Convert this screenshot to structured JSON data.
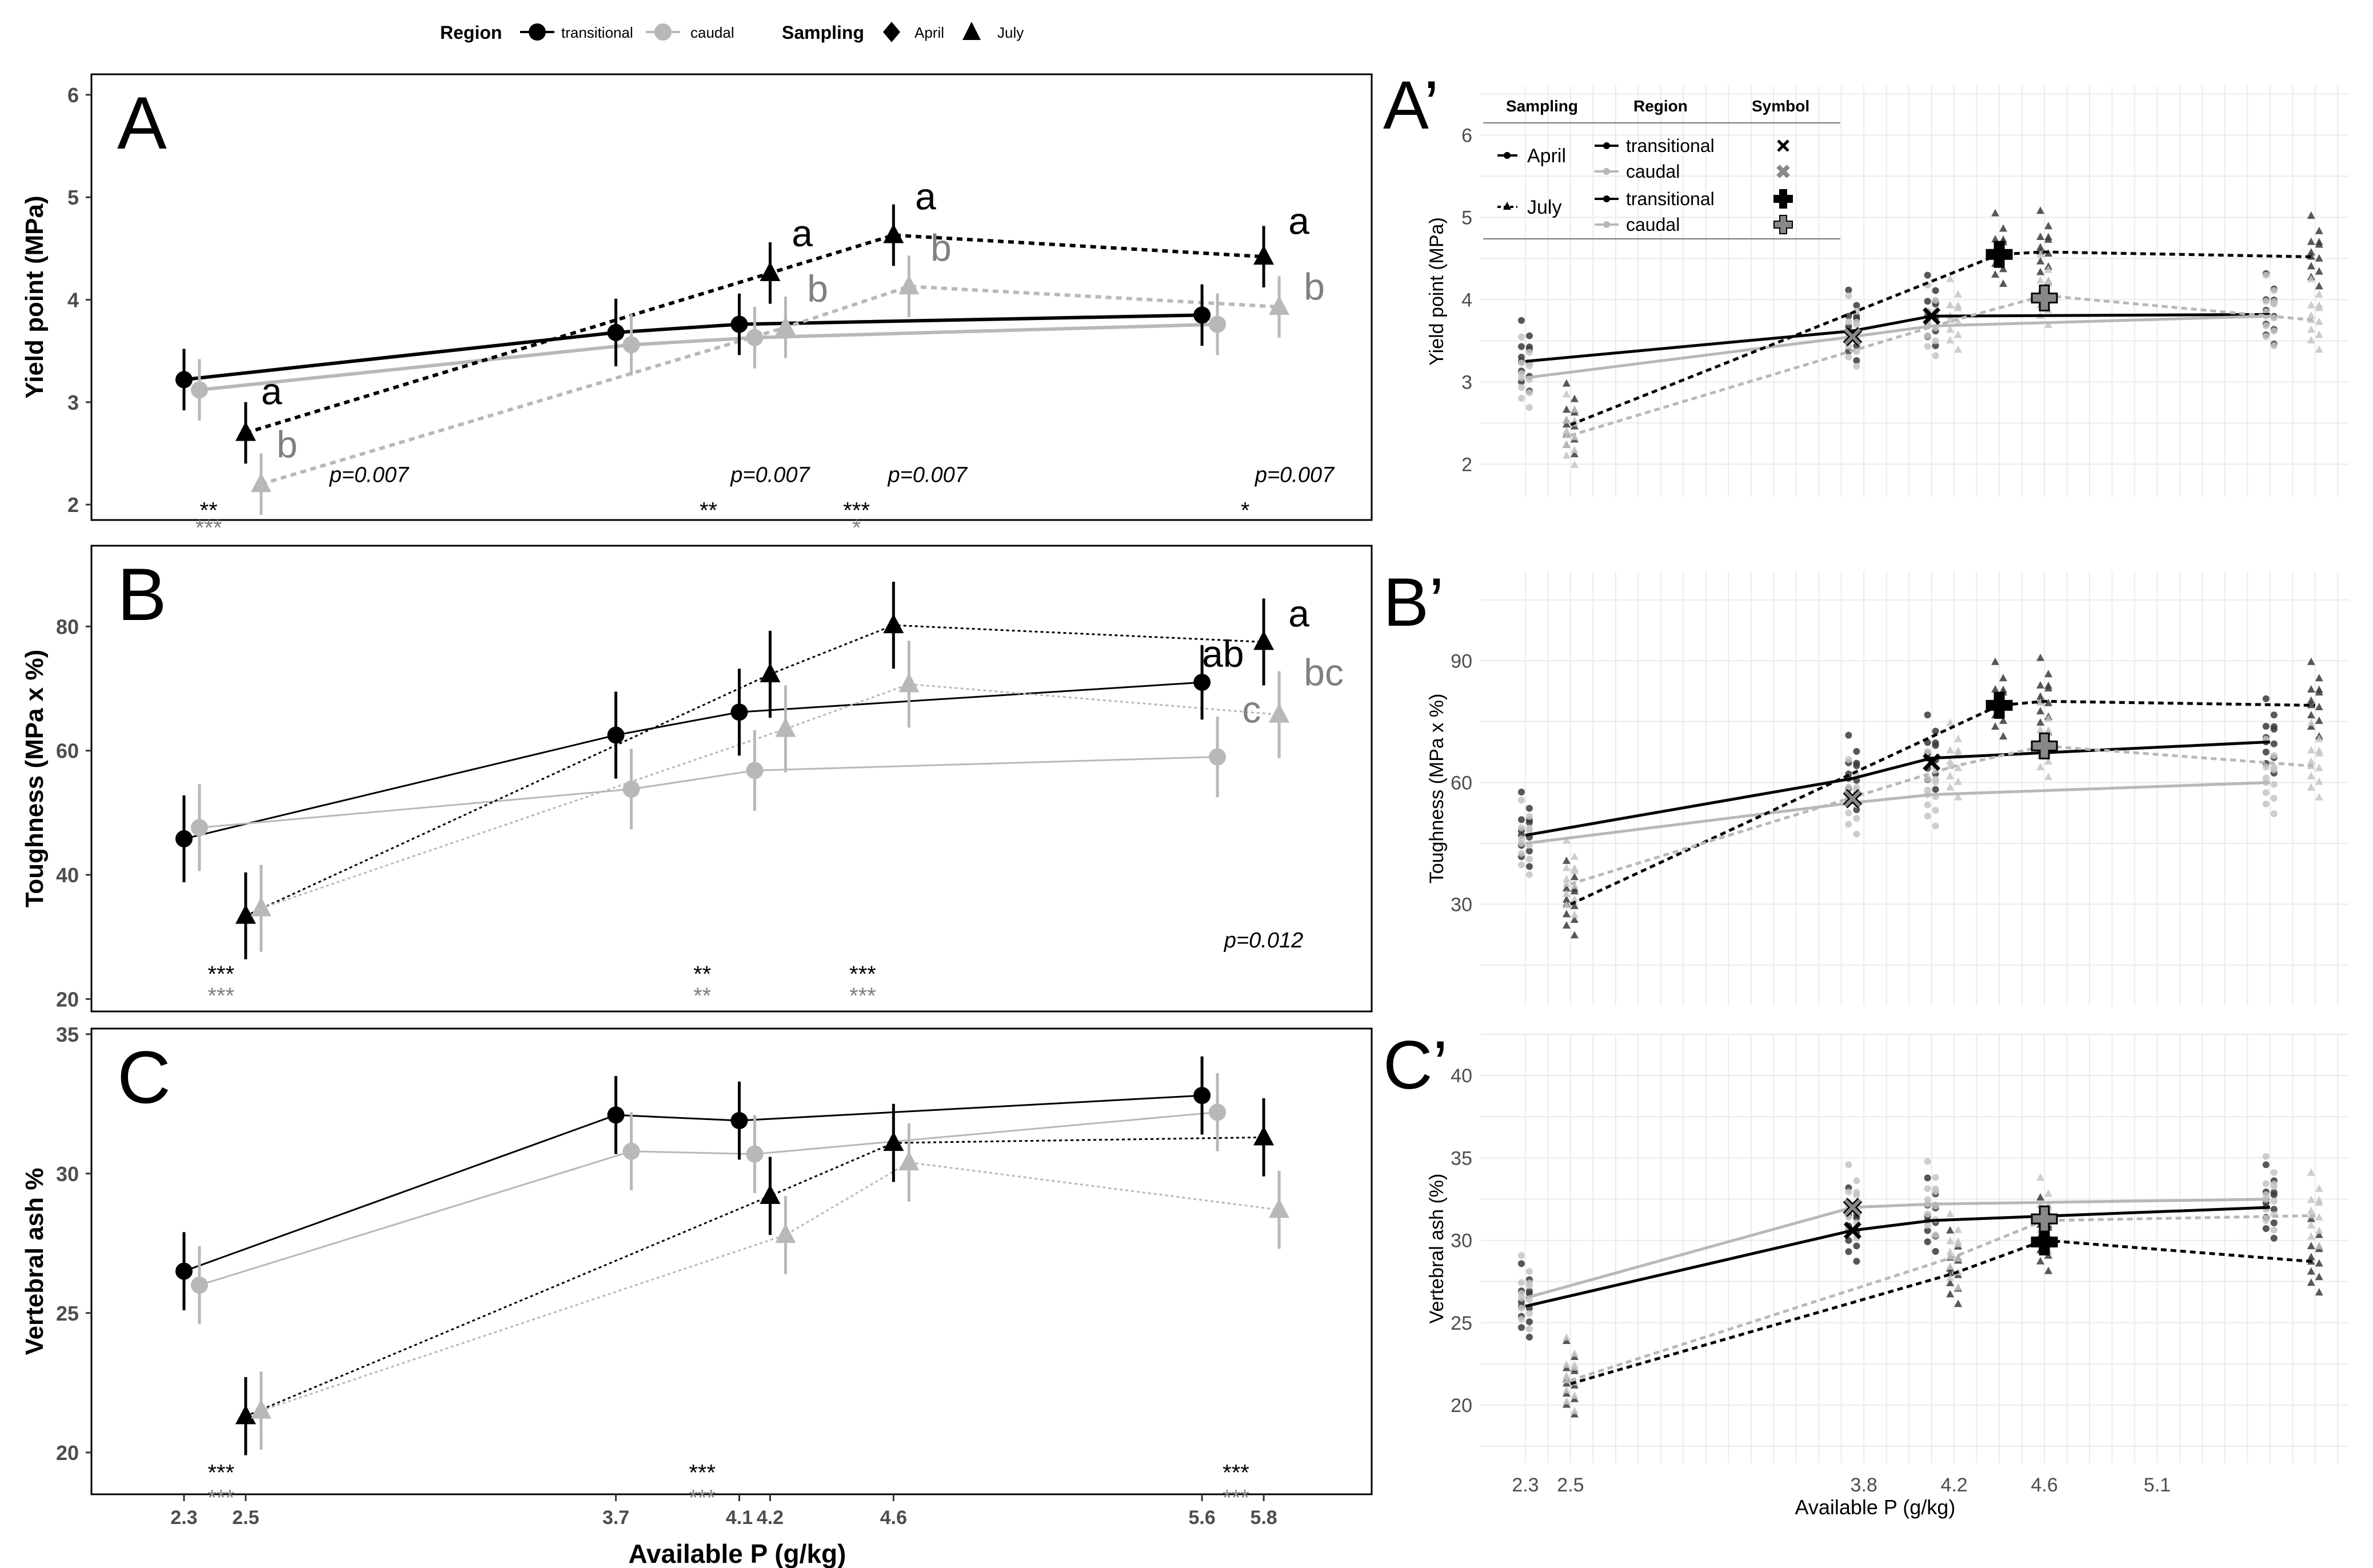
{
  "legend_top": {
    "region_title": "Region",
    "region_items": [
      "transitional",
      "caudal"
    ],
    "sampling_title": "Sampling",
    "sampling_items": [
      "April",
      "July"
    ]
  },
  "colors": {
    "transitional": "#000000",
    "caudal": "#b8b8b8",
    "caudal_text": "#808080",
    "grid": "#ebebeb",
    "frame": "#333333"
  },
  "chart_data": [
    {
      "id": "A",
      "panel_label": "A",
      "type": "line",
      "x": [
        2.3,
        2.5,
        3.7,
        4.1,
        4.2,
        4.6,
        5.6,
        5.8
      ],
      "ylabel": "Yield point (MPa)",
      "ylim": [
        1.85,
        6.2
      ],
      "yticks": [
        2,
        3,
        4,
        5,
        6
      ],
      "series": [
        {
          "name": "transitional April",
          "region": "transitional",
          "sampling": "April",
          "x": [
            2.3,
            3.7,
            4.1,
            5.6
          ],
          "y": [
            3.22,
            3.68,
            3.76,
            3.85
          ],
          "err": [
            0.3,
            0.33,
            0.3,
            0.3
          ]
        },
        {
          "name": "caudal April",
          "region": "caudal",
          "sampling": "April",
          "x": [
            2.35,
            3.75,
            4.15,
            5.65
          ],
          "y": [
            3.12,
            3.56,
            3.63,
            3.76
          ],
          "err": [
            0.3,
            0.3,
            0.3,
            0.3
          ]
        },
        {
          "name": "transitional July",
          "region": "transitional",
          "sampling": "July",
          "x": [
            2.5,
            4.2,
            4.6,
            5.8
          ],
          "y": [
            2.7,
            4.26,
            4.63,
            4.42
          ],
          "err": [
            0.3,
            0.3,
            0.3,
            0.3
          ]
        },
        {
          "name": "caudal July",
          "region": "caudal",
          "sampling": "July",
          "x": [
            2.55,
            4.25,
            4.65,
            5.85
          ],
          "y": [
            2.2,
            3.73,
            4.13,
            3.93
          ],
          "err": [
            0.3,
            0.3,
            0.3,
            0.3
          ]
        }
      ],
      "letters": [
        {
          "x": 2.55,
          "y": 2.98,
          "text": "a",
          "region": "transitional"
        },
        {
          "x": 2.6,
          "y": 2.46,
          "text": "b",
          "region": "caudal"
        },
        {
          "x": 4.27,
          "y": 4.52,
          "text": "a",
          "region": "transitional"
        },
        {
          "x": 4.32,
          "y": 3.98,
          "text": "b",
          "region": "caudal"
        },
        {
          "x": 4.67,
          "y": 4.88,
          "text": "a",
          "region": "transitional"
        },
        {
          "x": 4.72,
          "y": 4.38,
          "text": "b",
          "region": "caudal"
        },
        {
          "x": 5.88,
          "y": 4.64,
          "text": "a",
          "region": "transitional"
        },
        {
          "x": 5.93,
          "y": 4.0,
          "text": "b",
          "region": "caudal"
        }
      ],
      "pvalues": [
        {
          "x": 2.9,
          "y": 2.22,
          "text": "p=0.007"
        },
        {
          "x": 4.2,
          "y": 2.22,
          "text": "p=0.007"
        },
        {
          "x": 4.71,
          "y": 2.22,
          "text": "p=0.007"
        },
        {
          "x": 5.9,
          "y": 2.22,
          "text": "p=0.007"
        }
      ],
      "stars": [
        {
          "x": 2.38,
          "y": 1.87,
          "text": "**",
          "region": "transitional"
        },
        {
          "x": 2.38,
          "y": 1.7,
          "text": "***",
          "region": "caudal"
        },
        {
          "x": 4.0,
          "y": 1.87,
          "text": "**",
          "region": "transitional"
        },
        {
          "x": 4.48,
          "y": 1.87,
          "text": "***",
          "region": "transitional"
        },
        {
          "x": 4.48,
          "y": 1.7,
          "text": "*",
          "region": "caudal"
        },
        {
          "x": 5.74,
          "y": 1.87,
          "text": "*",
          "region": "transitional"
        }
      ]
    },
    {
      "id": "B",
      "panel_label": "B",
      "type": "line",
      "x": [
        2.3,
        2.5,
        3.7,
        4.1,
        4.2,
        4.6,
        5.6,
        5.8
      ],
      "ylabel": "Toughness (MPa x %)",
      "ylim": [
        18,
        93
      ],
      "yticks": [
        20,
        40,
        60,
        80
      ],
      "series": [
        {
          "name": "transitional April",
          "region": "transitional",
          "sampling": "April",
          "x": [
            2.3,
            3.7,
            4.1,
            5.6
          ],
          "y": [
            45.8,
            62.5,
            66.2,
            71.0
          ],
          "err": [
            7,
            7,
            7,
            6
          ]
        },
        {
          "name": "caudal April",
          "region": "caudal",
          "sampling": "April",
          "x": [
            2.35,
            3.75,
            4.15,
            5.65
          ],
          "y": [
            47.6,
            53.8,
            56.8,
            59.0
          ],
          "err": [
            7,
            6.5,
            6.5,
            6.5
          ]
        },
        {
          "name": "transitional July",
          "region": "transitional",
          "sampling": "July",
          "x": [
            2.5,
            4.2,
            4.6,
            5.8
          ],
          "y": [
            33.4,
            72.3,
            80.2,
            77.5
          ],
          "err": [
            7,
            7,
            7,
            7
          ]
        },
        {
          "name": "caudal July",
          "region": "caudal",
          "sampling": "July",
          "x": [
            2.55,
            4.25,
            4.65,
            5.85
          ],
          "y": [
            34.6,
            63.5,
            70.7,
            65.8
          ],
          "err": [
            7,
            7,
            7,
            7
          ]
        }
      ],
      "letters": [
        {
          "x": 5.6,
          "y": 73.5,
          "text": "ab",
          "region": "transitional"
        },
        {
          "x": 5.88,
          "y": 80.0,
          "text": "a",
          "region": "transitional"
        },
        {
          "x": 5.73,
          "y": 64.5,
          "text": "c",
          "region": "caudal"
        },
        {
          "x": 5.93,
          "y": 70.5,
          "text": "bc",
          "region": "caudal"
        }
      ],
      "pvalues": [
        {
          "x": 5.8,
          "y": 28.3,
          "text": "p=0.012"
        }
      ],
      "stars": [
        {
          "x": 2.42,
          "y": 22.8,
          "text": "***",
          "region": "transitional"
        },
        {
          "x": 2.42,
          "y": 19.3,
          "text": "***",
          "region": "caudal"
        },
        {
          "x": 3.98,
          "y": 22.8,
          "text": "**",
          "region": "transitional"
        },
        {
          "x": 3.98,
          "y": 19.3,
          "text": "**",
          "region": "caudal"
        },
        {
          "x": 4.5,
          "y": 22.8,
          "text": "***",
          "region": "transitional"
        },
        {
          "x": 4.5,
          "y": 19.3,
          "text": "***",
          "region": "caudal"
        }
      ]
    },
    {
      "id": "C",
      "panel_label": "C",
      "type": "line",
      "x": [
        2.3,
        2.5,
        3.7,
        4.1,
        4.2,
        4.6,
        5.6,
        5.8
      ],
      "ylabel": "Vertebral ash %",
      "ylim": [
        18.5,
        35.2
      ],
      "yticks": [
        20,
        25,
        30,
        35
      ],
      "xlabel": "Available P (g/kg)",
      "xtick_labels": [
        "2.3",
        "2.5",
        "3.7",
        "4.1",
        "4.2",
        "4.6",
        "5.6",
        "5.8"
      ],
      "series": [
        {
          "name": "transitional April",
          "region": "transitional",
          "sampling": "April",
          "x": [
            2.3,
            3.7,
            4.1,
            5.6
          ],
          "y": [
            26.5,
            32.1,
            31.9,
            32.8
          ],
          "err": [
            1.4,
            1.4,
            1.4,
            1.4
          ]
        },
        {
          "name": "caudal April",
          "region": "caudal",
          "sampling": "April",
          "x": [
            2.35,
            3.75,
            4.15,
            5.65
          ],
          "y": [
            26.0,
            30.8,
            30.7,
            32.2
          ],
          "err": [
            1.4,
            1.4,
            1.4,
            1.4
          ]
        },
        {
          "name": "transitional July",
          "region": "transitional",
          "sampling": "July",
          "x": [
            2.5,
            4.2,
            4.6,
            5.8
          ],
          "y": [
            21.3,
            29.2,
            31.1,
            31.3
          ],
          "err": [
            1.4,
            1.4,
            1.4,
            1.4
          ]
        },
        {
          "name": "caudal July",
          "region": "caudal",
          "sampling": "July",
          "x": [
            2.55,
            4.25,
            4.65,
            5.85
          ],
          "y": [
            21.5,
            27.8,
            30.4,
            28.7
          ],
          "err": [
            1.4,
            1.4,
            1.4,
            1.4
          ]
        }
      ],
      "letters": [],
      "pvalues": [],
      "stars": [
        {
          "x": 2.42,
          "y": 19.0,
          "text": "***",
          "region": "transitional"
        },
        {
          "x": 2.42,
          "y": 18.1,
          "text": "***",
          "region": "caudal"
        },
        {
          "x": 3.98,
          "y": 19.0,
          "text": "***",
          "region": "transitional"
        },
        {
          "x": 3.98,
          "y": 18.1,
          "text": "***",
          "region": "caudal"
        },
        {
          "x": 5.71,
          "y": 19.0,
          "text": "***",
          "region": "transitional"
        },
        {
          "x": 5.71,
          "y": 18.1,
          "text": "***",
          "region": "caudal"
        }
      ]
    },
    {
      "id": "A2",
      "panel_label": "A’",
      "type": "scatter",
      "ylabel": "Yield point (MPa)",
      "ylim": [
        1.6,
        6.6
      ],
      "yticks": [
        2,
        3,
        4,
        5,
        6
      ],
      "means": [
        {
          "region": "transitional",
          "sampling": "April",
          "x": [
            2.3,
            3.75,
            4.1,
            5.6
          ],
          "y": [
            3.25,
            3.62,
            3.8,
            3.82
          ]
        },
        {
          "region": "caudal",
          "sampling": "April",
          "x": [
            2.3,
            3.75,
            4.1,
            5.6
          ],
          "y": [
            3.05,
            3.55,
            3.68,
            3.8
          ]
        },
        {
          "region": "transitional",
          "sampling": "July",
          "x": [
            2.5,
            4.4,
            4.6,
            5.8
          ],
          "y": [
            2.48,
            4.55,
            4.58,
            4.52
          ]
        },
        {
          "region": "caudal",
          "sampling": "July",
          "x": [
            2.5,
            4.2,
            4.6,
            5.8
          ],
          "y": [
            2.35,
            3.75,
            4.05,
            3.75
          ]
        }
      ],
      "symbols": [
        {
          "x": 4.1,
          "y": 3.8,
          "kind": "x",
          "fill": "#000000"
        },
        {
          "x": 3.75,
          "y": 3.55,
          "kind": "x",
          "fill": "#888888"
        },
        {
          "x": 4.4,
          "y": 4.55,
          "kind": "plus",
          "fill": "#000000"
        },
        {
          "x": 4.6,
          "y": 4.02,
          "kind": "plus",
          "fill": "#888888"
        }
      ],
      "legend": {
        "headers": [
          "Sampling",
          "Region",
          "Symbol"
        ],
        "sampling": [
          "April",
          "July"
        ],
        "region": [
          "transitional",
          "caudal",
          "transitional",
          "caudal"
        ]
      }
    },
    {
      "id": "B2",
      "panel_label": "B’",
      "type": "scatter",
      "ylabel": "Toughness (MPa x %)",
      "ylim": [
        5,
        112
      ],
      "yticks": [
        30,
        60,
        90
      ],
      "means": [
        {
          "region": "transitional",
          "sampling": "April",
          "x": [
            2.3,
            3.75,
            4.1,
            5.6
          ],
          "y": [
            47,
            61,
            66,
            70
          ]
        },
        {
          "region": "caudal",
          "sampling": "April",
          "x": [
            2.3,
            3.75,
            4.1,
            5.6
          ],
          "y": [
            45,
            55,
            57,
            60
          ]
        },
        {
          "region": "transitional",
          "sampling": "July",
          "x": [
            2.5,
            4.4,
            4.6,
            5.8
          ],
          "y": [
            30,
            79,
            80,
            79
          ]
        },
        {
          "region": "caudal",
          "sampling": "July",
          "x": [
            2.5,
            4.2,
            4.6,
            5.8
          ],
          "y": [
            35,
            64,
            69,
            64
          ]
        }
      ],
      "symbols": [
        {
          "x": 4.1,
          "y": 65,
          "kind": "x",
          "fill": "#000000"
        },
        {
          "x": 3.75,
          "y": 56,
          "kind": "x",
          "fill": "#888888"
        },
        {
          "x": 4.4,
          "y": 79,
          "kind": "plus",
          "fill": "#000000"
        },
        {
          "x": 4.6,
          "y": 69,
          "kind": "plus",
          "fill": "#888888"
        }
      ]
    },
    {
      "id": "C2",
      "panel_label": "C’",
      "type": "scatter",
      "ylabel": "Vertebral ash (%)",
      "ylim": [
        16.5,
        42.5
      ],
      "yticks": [
        20,
        25,
        30,
        35,
        40
      ],
      "xlabel": "Available P (g/kg)",
      "xtick_labels": [
        "2.3",
        "2.5",
        "3.8",
        "4.2",
        "4.6",
        "5.1"
      ],
      "xtick_values": [
        2.3,
        2.5,
        3.8,
        4.2,
        4.6,
        5.1
      ],
      "means": [
        {
          "region": "transitional",
          "sampling": "April",
          "x": [
            2.3,
            3.75,
            4.1,
            5.6
          ],
          "y": [
            26.0,
            30.6,
            31.2,
            32.0
          ]
        },
        {
          "region": "caudal",
          "sampling": "April",
          "x": [
            2.3,
            3.75,
            4.1,
            5.6
          ],
          "y": [
            26.5,
            32.0,
            32.2,
            32.5
          ]
        },
        {
          "region": "transitional",
          "sampling": "July",
          "x": [
            2.5,
            4.2,
            4.6,
            5.8
          ],
          "y": [
            21.3,
            28.0,
            30.0,
            28.7
          ]
        },
        {
          "region": "caudal",
          "sampling": "July",
          "x": [
            2.5,
            4.2,
            4.6,
            5.8
          ],
          "y": [
            21.5,
            29.0,
            31.2,
            31.5
          ]
        }
      ],
      "symbols": [
        {
          "x": 3.75,
          "y": 30.6,
          "kind": "x",
          "fill": "#000000"
        },
        {
          "x": 3.75,
          "y": 32.0,
          "kind": "x",
          "fill": "#888888"
        },
        {
          "x": 4.6,
          "y": 29.9,
          "kind": "plus",
          "fill": "#000000"
        },
        {
          "x": 4.6,
          "y": 31.3,
          "kind": "plus",
          "fill": "#888888"
        }
      ]
    }
  ]
}
